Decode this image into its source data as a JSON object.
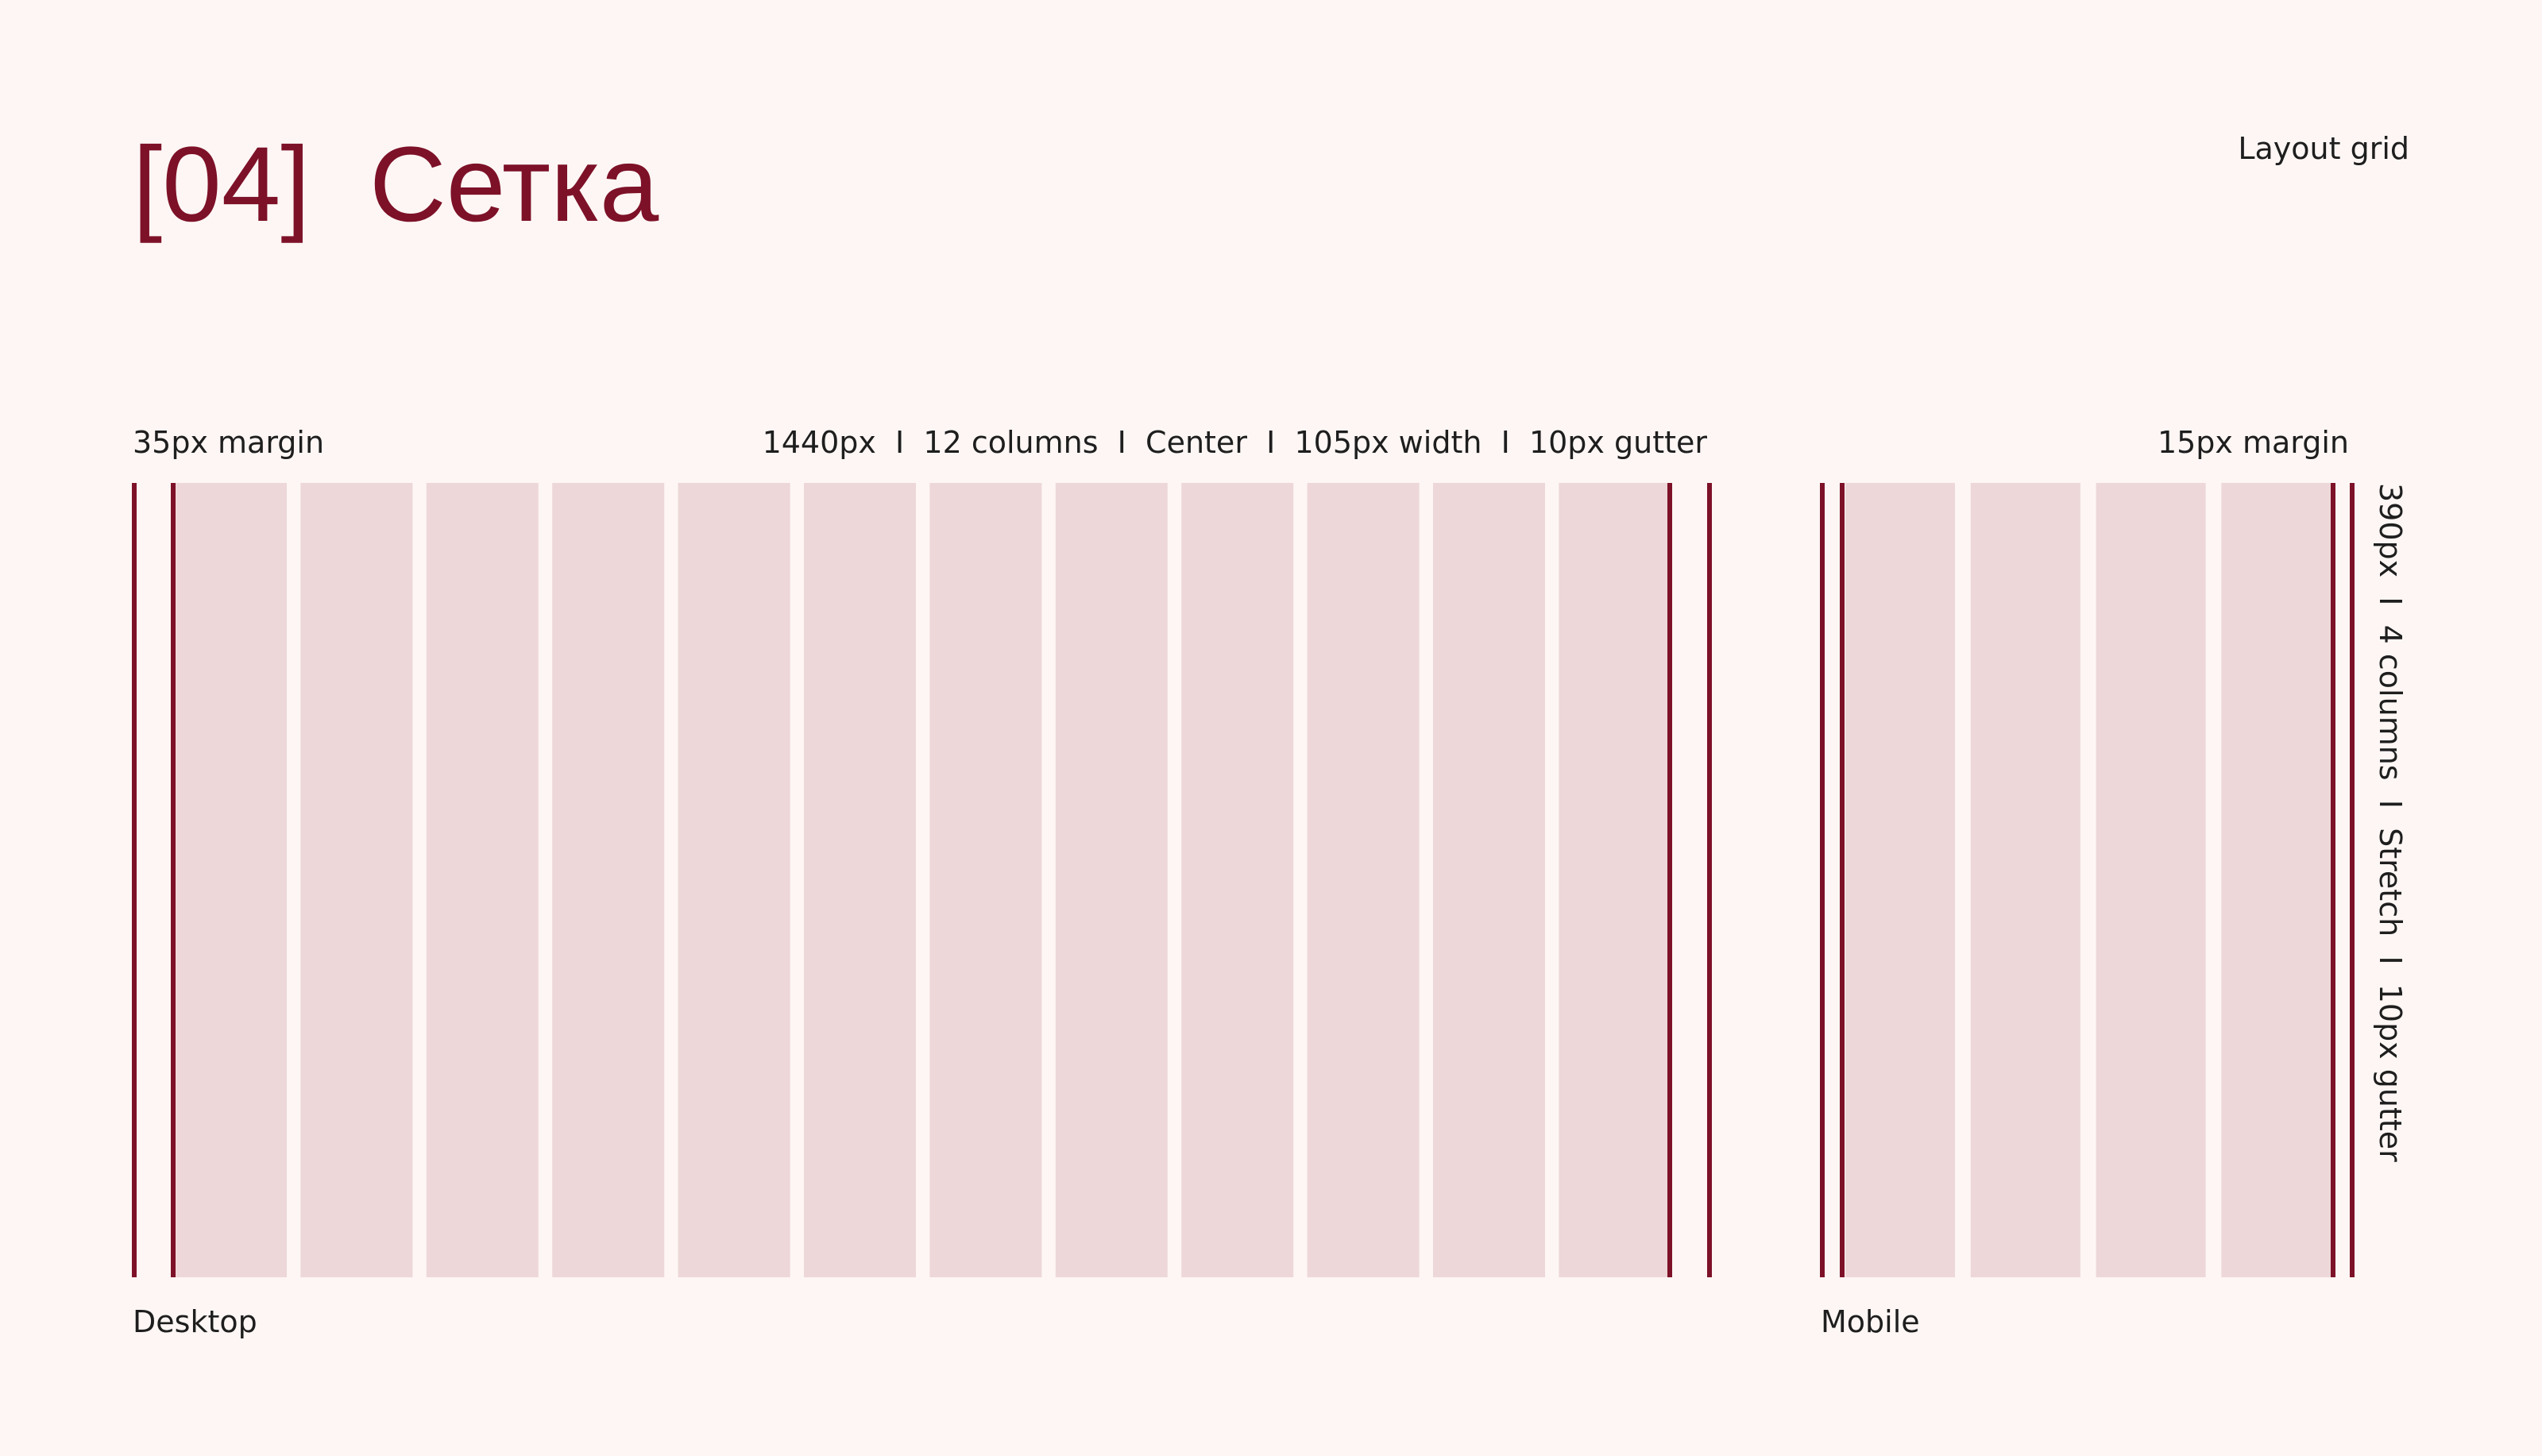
{
  "header": {
    "title": "[04]  Сетка",
    "section": "Layout grid"
  },
  "desktop": {
    "margin": "35px margin",
    "spec": "1440px  I  12 columns  I  Center  I  105px width  I  10px gutter",
    "label": "Desktop"
  },
  "mobile": {
    "margin": "15px margin",
    "spec": "390px  I  4 columns  I  Stretch  I  10px gutter",
    "label": "Mobile"
  }
}
